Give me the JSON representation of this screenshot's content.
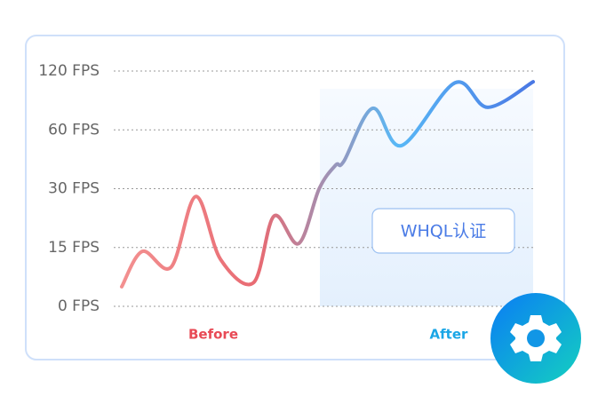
{
  "chart_data": {
    "type": "line",
    "yscale": "piecewise",
    "ylim": [
      0,
      120
    ],
    "yticks": [
      {
        "value": 0,
        "label": "0 FPS"
      },
      {
        "value": 15,
        "label": "15 FPS"
      },
      {
        "value": 30,
        "label": "30 FPS"
      },
      {
        "value": 60,
        "label": "60 FPS"
      },
      {
        "value": 120,
        "label": "120 FPS"
      }
    ],
    "grid": true,
    "xlim": [
      0,
      100
    ],
    "x": [
      0,
      5,
      12,
      18,
      24,
      32,
      37,
      43,
      48,
      52,
      54,
      61,
      68,
      81,
      89,
      100
    ],
    "series": [
      {
        "gradient": [
          "#f39090",
          "#e86a72",
          "#58b8f6",
          "#4a78e4"
        ],
        "values": [
          5,
          14,
          10,
          28,
          12,
          6,
          23,
          16,
          30,
          42,
          44,
          82,
          52,
          108,
          83,
          109
        ]
      }
    ],
    "categories": [
      {
        "label": "Before",
        "color": "#e84a55"
      },
      {
        "label": "After",
        "color": "#1aa6e6"
      }
    ],
    "badge": "WHQL认证"
  }
}
